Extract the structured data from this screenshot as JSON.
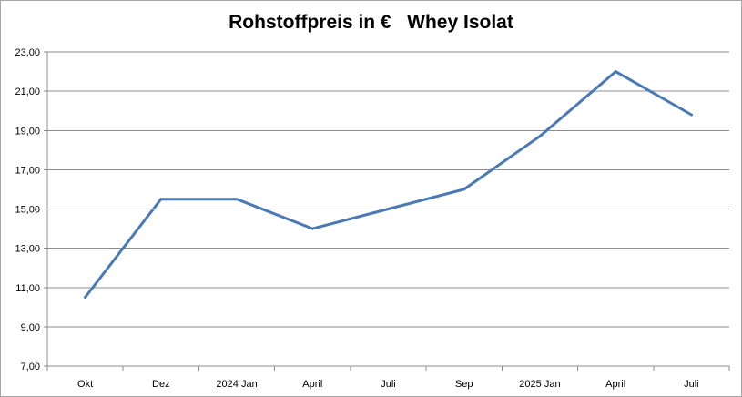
{
  "chart_data": {
    "type": "line",
    "title": "Rohstoffpreis in €   Whey Isolat",
    "categories": [
      "Okt",
      "Dez",
      "2024 Jan",
      "April",
      "Juli",
      "Sep",
      "2025 Jan",
      "April",
      "Juli"
    ],
    "series": [
      {
        "values": [
          10.5,
          15.5,
          15.5,
          14.0,
          15.0,
          16.0,
          18.7,
          22.0,
          19.8
        ],
        "color": "#4a7ab5"
      }
    ],
    "ylim": [
      7,
      23
    ],
    "yticks": [
      "7,00",
      "9,00",
      "11,00",
      "13,00",
      "15,00",
      "17,00",
      "19,00",
      "21,00",
      "23,00"
    ],
    "grid": true,
    "legend": "none"
  }
}
